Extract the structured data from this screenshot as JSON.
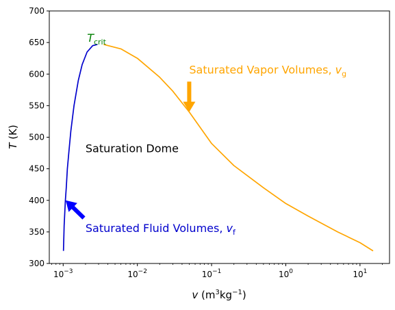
{
  "chart_data": {
    "type": "line",
    "title": "",
    "xlabel": {
      "italic": "v",
      "unit": "m",
      "sup1": "3",
      "mid": "kg",
      "sup2": "−1"
    },
    "ylabel": {
      "italic": "T",
      "unit": "K"
    },
    "xscale": "log",
    "xlim": [
      0.00065,
      25
    ],
    "ylim": [
      300,
      700
    ],
    "grid": false,
    "yticks": [
      300,
      350,
      400,
      450,
      500,
      550,
      600,
      650,
      700
    ],
    "xticks": [
      {
        "value": 0.001,
        "base": "10",
        "exp": "−3"
      },
      {
        "value": 0.01,
        "base": "10",
        "exp": "−2"
      },
      {
        "value": 0.1,
        "base": "10",
        "exp": "−1"
      },
      {
        "value": 1,
        "base": "10",
        "exp": "0"
      },
      {
        "value": 10,
        "base": "10",
        "exp": "1"
      }
    ],
    "series": [
      {
        "color": "#0000cc",
        "points": [
          [
            0.00101,
            320
          ],
          [
            0.00102,
            340
          ],
          [
            0.00103,
            360
          ],
          [
            0.00105,
            380
          ],
          [
            0.00107,
            400
          ],
          [
            0.0011,
            420
          ],
          [
            0.00114,
            450
          ],
          [
            0.0012,
            480
          ],
          [
            0.00127,
            510
          ],
          [
            0.0014,
            550
          ],
          [
            0.0016,
            590
          ],
          [
            0.0018,
            615
          ],
          [
            0.0021,
            635
          ],
          [
            0.0025,
            645
          ],
          [
            0.0029,
            647
          ]
        ]
      },
      {
        "color": "#ffa500",
        "points": [
          [
            0.0035,
            647
          ],
          [
            0.006,
            640
          ],
          [
            0.01,
            625
          ],
          [
            0.02,
            595
          ],
          [
            0.03,
            573
          ],
          [
            0.05,
            540
          ],
          [
            0.1,
            490
          ],
          [
            0.2,
            455
          ],
          [
            0.5,
            420
          ],
          [
            1,
            395
          ],
          [
            2,
            375
          ],
          [
            5,
            350
          ],
          [
            10,
            333
          ],
          [
            15,
            320
          ]
        ]
      }
    ],
    "annotations": [
      {
        "id": "tcrit",
        "main": "T",
        "sub": "crit",
        "color": "#008000",
        "x": 0.0021,
        "y": 651
      },
      {
        "id": "vapor",
        "main": "Saturated Vapor Volumes, ",
        "italic": "v",
        "sub": "g",
        "color": "#ffa500",
        "x": 0.05,
        "y": 601
      },
      {
        "id": "dome",
        "main": "Saturation Dome",
        "color": "#000000",
        "x": 0.002,
        "y": 476
      },
      {
        "id": "fluid",
        "main": "Saturated Fluid Volumes, ",
        "italic": "v",
        "sub": "f",
        "color": "#0000cc",
        "x": 0.002,
        "y": 350
      }
    ],
    "arrows": [
      {
        "id": "vapor-arrow",
        "color": "#ffa500",
        "from": [
          0.05,
          588
        ],
        "to": [
          0.05,
          540
        ]
      },
      {
        "id": "fluid-arrow",
        "color": "#0000ff",
        "from": [
          0.0019,
          372
        ],
        "to": [
          0.00108,
          400
        ]
      }
    ]
  }
}
